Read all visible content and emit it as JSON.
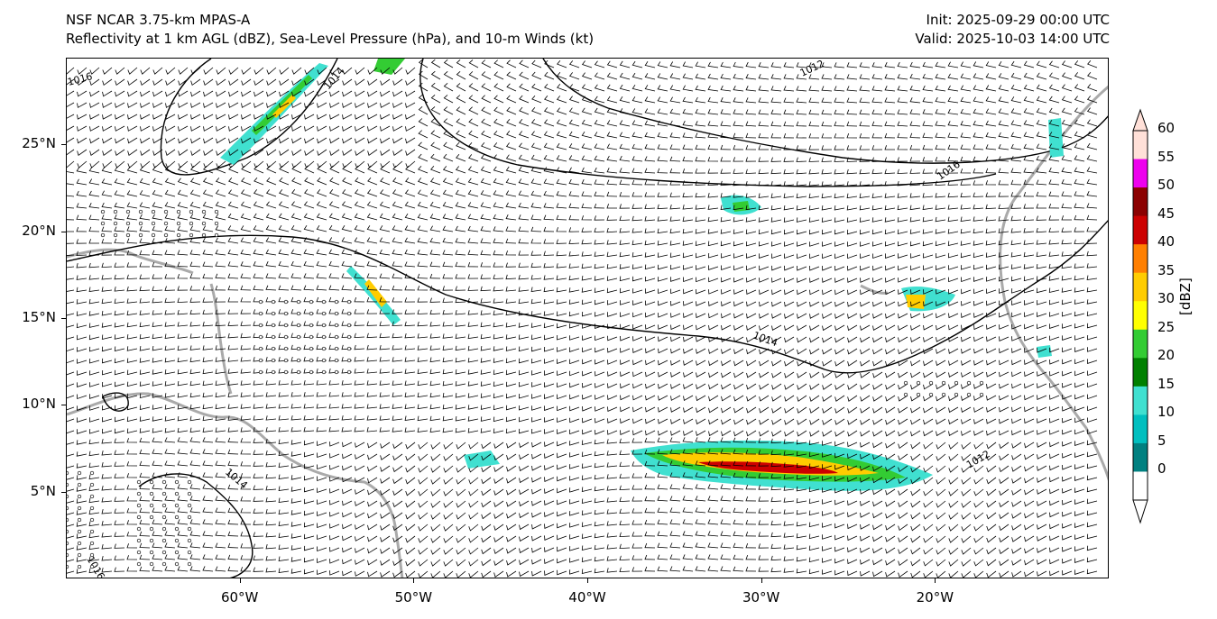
{
  "header": {
    "model_line": "NSF NCAR 3.75-km MPAS-A",
    "fields_line": "Reflectivity at 1 km AGL (dBZ), Sea-Level Pressure (hPa), and 10-m Winds (kt)",
    "init_line": "Init: 2025-09-29 00:00 UTC",
    "valid_line": "Valid: 2025-10-03 14:00 UTC"
  },
  "map": {
    "lat_range": [
      0,
      30
    ],
    "lon_range": [
      -70,
      -10
    ],
    "lat_labels": [
      "25°N",
      "20°N",
      "15°N",
      "10°N",
      "5°N"
    ],
    "lat_values": [
      25,
      20,
      15,
      10,
      5
    ],
    "lon_labels": [
      "60°W",
      "50°W",
      "40°W",
      "30°W",
      "20°W"
    ],
    "lon_values": [
      -60,
      -50,
      -40,
      -30,
      -20
    ],
    "isobar_labels": [
      "1016",
      "1014",
      "1012",
      "1016",
      "1014",
      "1014",
      "1016",
      "1012"
    ],
    "coastline_color": "#aaaaaa",
    "isobar_color": "#000000",
    "barb_color": "#000000"
  },
  "colorbar": {
    "unit_label": "[dBZ]",
    "ticks": [
      "60",
      "55",
      "50",
      "45",
      "40",
      "35",
      "30",
      "25",
      "20",
      "15",
      "10",
      "5",
      "0"
    ],
    "colors": [
      "#ffe0d8",
      "#ee00ee",
      "#8b0000",
      "#cc0000",
      "#ff7f00",
      "#ffcc00",
      "#ffff00",
      "#33cc33",
      "#008000",
      "#40e0d0",
      "#00bfbf",
      "#008080",
      "#ffffff"
    ]
  }
}
